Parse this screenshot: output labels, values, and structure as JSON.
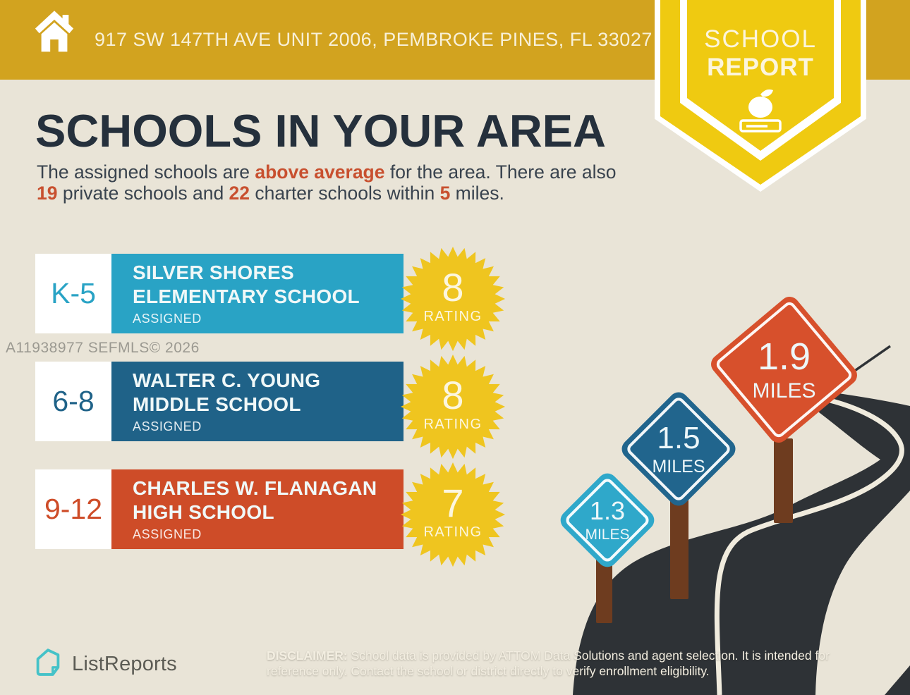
{
  "header": {
    "address": "917 SW 147TH AVE UNIT 2006, PEMBROKE PINES, FL 33027"
  },
  "ribbon": {
    "line1": "SCHOOL",
    "line2": "REPORT"
  },
  "title": "SCHOOLS IN YOUR AREA",
  "intro": {
    "seg1": "The assigned schools are ",
    "hl1": "above average",
    "seg2": " for the area. There are also ",
    "hl2": "19",
    "seg3": " private schools and ",
    "hl3": "22",
    "seg4": " charter schools within ",
    "hl4": "5",
    "seg5": " miles."
  },
  "schools": [
    {
      "grades": "K-5",
      "name_line1": "SILVER SHORES",
      "name_line2": "ELEMENTARY SCHOOL",
      "status": "ASSIGNED",
      "rating": "8",
      "rating_label": "RATING",
      "color": "#29A3C5"
    },
    {
      "grades": "6-8",
      "name_line1": "WALTER C. YOUNG",
      "name_line2": "MIDDLE SCHOOL",
      "status": "ASSIGNED",
      "rating": "8",
      "rating_label": "RATING",
      "color": "#1F6288"
    },
    {
      "grades": "9-12",
      "name_line1": "CHARLES W. FLANAGAN",
      "name_line2": "HIGH SCHOOL",
      "status": "ASSIGNED",
      "rating": "7",
      "rating_label": "RATING",
      "color": "#CE4C28"
    }
  ],
  "signs": [
    {
      "distance": "1.3",
      "unit": "MILES",
      "color": "#2FA8CA"
    },
    {
      "distance": "1.5",
      "unit": "MILES",
      "color": "#21658D"
    },
    {
      "distance": "1.9",
      "unit": "MILES",
      "color": "#D7502C"
    }
  ],
  "watermark": "A11938977  SEFMLS© 2026",
  "footer": {
    "brand": "ListReports",
    "disclaimer_label": "DISCLAIMER:",
    "disclaimer_text": " School data is provided by ATTOM Data Solutions and agent selection. It is intended for reference only. Contact the school or district directly to verify enrollment eligibility."
  },
  "colors": {
    "header_gold": "#D2A31F",
    "ribbon_yellow": "#EFCA11",
    "badge_yellow": "#EFC51F",
    "background": "#E9E4D7",
    "title_navy": "#25303C",
    "accent_orange": "#C8502F",
    "asphalt": "#2E3236",
    "road_line": "#F0EBDD",
    "post_brown": "#6E3C1F",
    "brand_teal": "#45C2C8"
  }
}
